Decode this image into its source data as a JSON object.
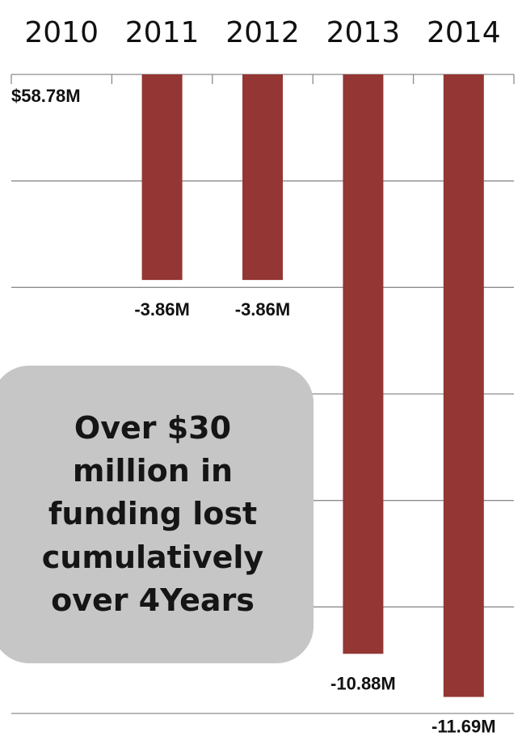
{
  "chart_data": {
    "type": "bar",
    "categories": [
      "2010",
      "2011",
      "2012",
      "2013",
      "2014"
    ],
    "values": [
      0,
      -3.86,
      -3.86,
      -10.88,
      -11.69
    ],
    "value_labels": [
      "",
      "-3.86M",
      "-3.86M",
      "-10.88M",
      "-11.69M"
    ],
    "baseline_label": "$58.78M",
    "ylim": [
      -12.0,
      0
    ],
    "grid": true,
    "bar_color": "#943634",
    "title": "",
    "xlabel": "",
    "ylabel": ""
  },
  "callout": {
    "text": "Over $30 million in funding lost cumulatively over 4Years"
  }
}
